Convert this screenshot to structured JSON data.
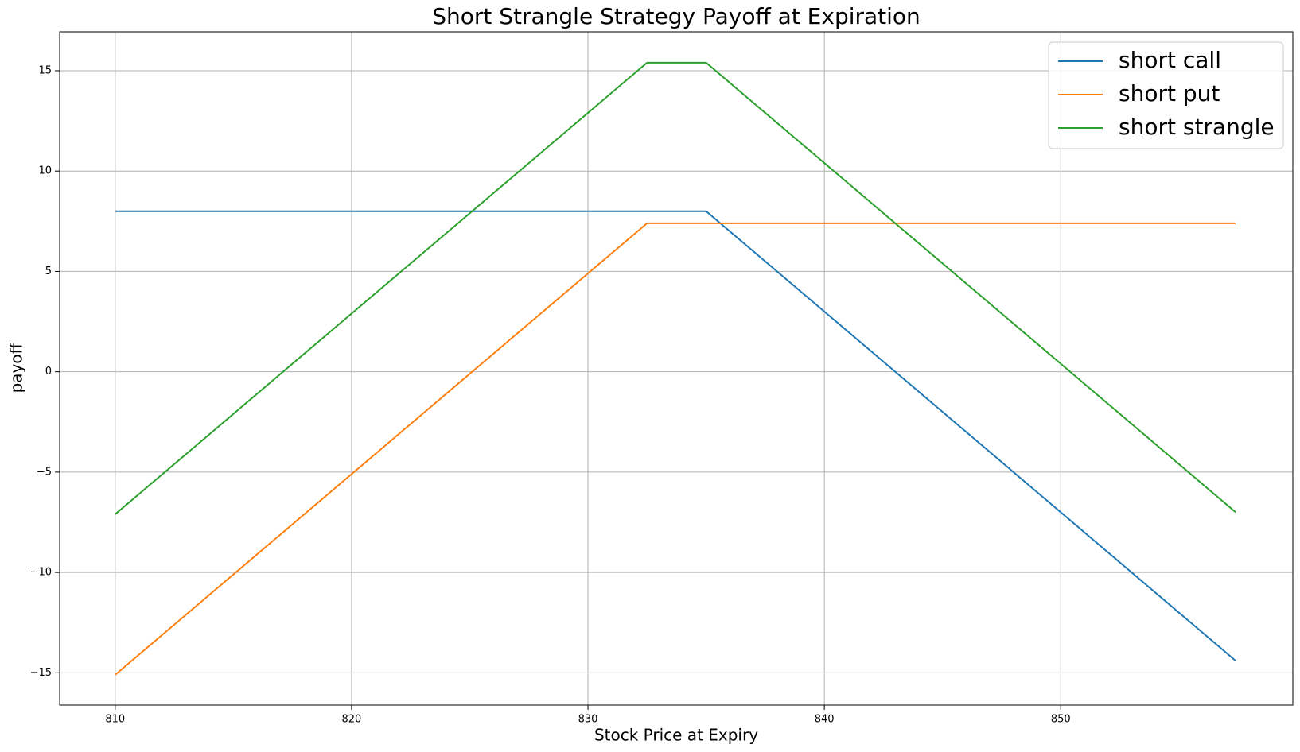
{
  "chart_data": {
    "type": "line",
    "title": "Short Strangle Strategy Payoff at Expiration",
    "x_label": "Stock Price at Expiry",
    "y_label": "payoff",
    "x": [
      810,
      832.5,
      835,
      857.4
    ],
    "series": [
      {
        "name": "short call",
        "color": "#1f77b4",
        "values": [
          8,
          8,
          8,
          -14.4
        ]
      },
      {
        "name": "short put",
        "color": "#ff7f0e",
        "values": [
          -15.1,
          7.4,
          7.4,
          7.4
        ]
      },
      {
        "name": "short strangle",
        "color": "#2ca02c",
        "values": [
          -7.1,
          15.4,
          15.4,
          -7.0
        ]
      }
    ],
    "xlim": [
      807.65,
      859.82
    ],
    "ylim": [
      -16.61,
      16.94
    ],
    "xticks": [
      810,
      820,
      830,
      840,
      850
    ],
    "yticks": [
      {
        "value": -15,
        "label": "−15"
      },
      {
        "value": -10,
        "label": "−10"
      },
      {
        "value": -5,
        "label": "−5"
      },
      0,
      5,
      10,
      15
    ],
    "grid": true,
    "legend": "upper right"
  }
}
